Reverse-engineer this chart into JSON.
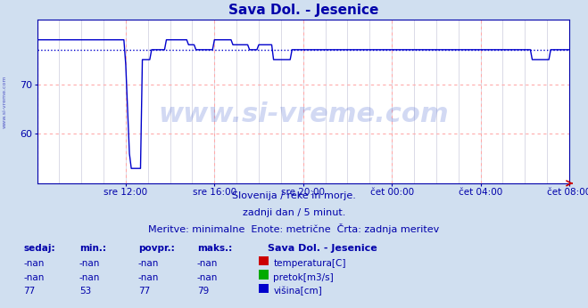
{
  "title": "Sava Dol. - Jesenice",
  "bg_color": "#d0dff0",
  "plot_bg_color": "#ffffff",
  "grid_major_color": "#ffaaaa",
  "grid_minor_color": "#ccccdd",
  "line_color": "#0000cc",
  "avg_line_color": "#0000cc",
  "marker_color": "#cc0000",
  "ylim": [
    50,
    83
  ],
  "yticks": [
    60,
    70
  ],
  "x_labels": [
    "sre 12:00",
    "sre 16:00",
    "sre 20:00",
    "čet 00:00",
    "čet 04:00",
    "čet 08:00"
  ],
  "subtitle1": "Slovenija / reke in morje.",
  "subtitle2": "zadnji dan / 5 minut.",
  "subtitle3": "Meritve: minimalne  Enote: metrične  Črta: zadnja meritev",
  "watermark_text": "www.si-vreme.com",
  "side_text": "www.si-vreme.com",
  "legend_title": "Sava Dol. - Jesenice",
  "legend_items": [
    {
      "label": "temperatura[C]",
      "color": "#cc0000"
    },
    {
      "label": "pretok[m3/s]",
      "color": "#00aa00"
    },
    {
      "label": "višina[cm]",
      "color": "#0000cc"
    }
  ],
  "table_headers": [
    "sedaj:",
    "min.:",
    "povpr.:",
    "maks.:"
  ],
  "table_rows": [
    [
      "-nan",
      "-nan",
      "-nan",
      "-nan"
    ],
    [
      "-nan",
      "-nan",
      "-nan",
      "-nan"
    ],
    [
      "77",
      "53",
      "77",
      "79"
    ]
  ],
  "avg_value": 77,
  "n_points": 289
}
